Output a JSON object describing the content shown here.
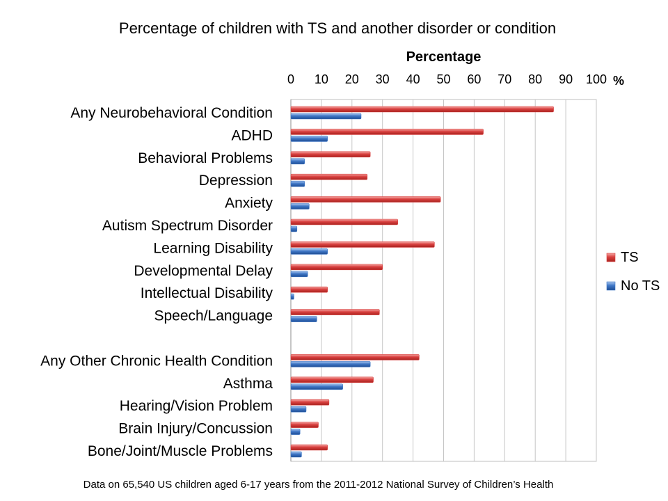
{
  "chart_data": {
    "type": "bar",
    "orientation": "horizontal",
    "title": "Percentage of children with TS and another disorder or condition",
    "xlabel": "Percentage",
    "unit": "%",
    "xlim": [
      0,
      100
    ],
    "ticks": [
      0,
      10,
      20,
      30,
      40,
      50,
      60,
      70,
      80,
      90,
      100
    ],
    "grid": true,
    "legend_position": "right",
    "categories": [
      "Any Neurobehavioral Condition",
      "ADHD",
      "Behavioral Problems",
      "Depression",
      "Anxiety",
      "Autism Spectrum Disorder",
      "Learning Disability",
      "Developmental Delay",
      "Intellectual Disability",
      "Speech/Language",
      "",
      "Any Other Chronic Health Condition",
      "Asthma",
      "Hearing/Vision Problem",
      "Brain Injury/Concussion",
      "Bone/Joint/Muscle Problems"
    ],
    "series": [
      {
        "name": "TS",
        "color": "#d9403f",
        "values": [
          86,
          63,
          26,
          25,
          49,
          35,
          47,
          30,
          12,
          29,
          null,
          42,
          27,
          12.5,
          9,
          12
        ]
      },
      {
        "name": "No TS",
        "color": "#3f77c6",
        "values": [
          23,
          12,
          4.5,
          4.5,
          6,
          2,
          12,
          5.5,
          1,
          8.5,
          null,
          26,
          17,
          5,
          3,
          3.5
        ]
      }
    ]
  },
  "footnote": "Data on 65,540 US children aged 6-17 years from the 2011-2012 National Survey of Children’s Health"
}
